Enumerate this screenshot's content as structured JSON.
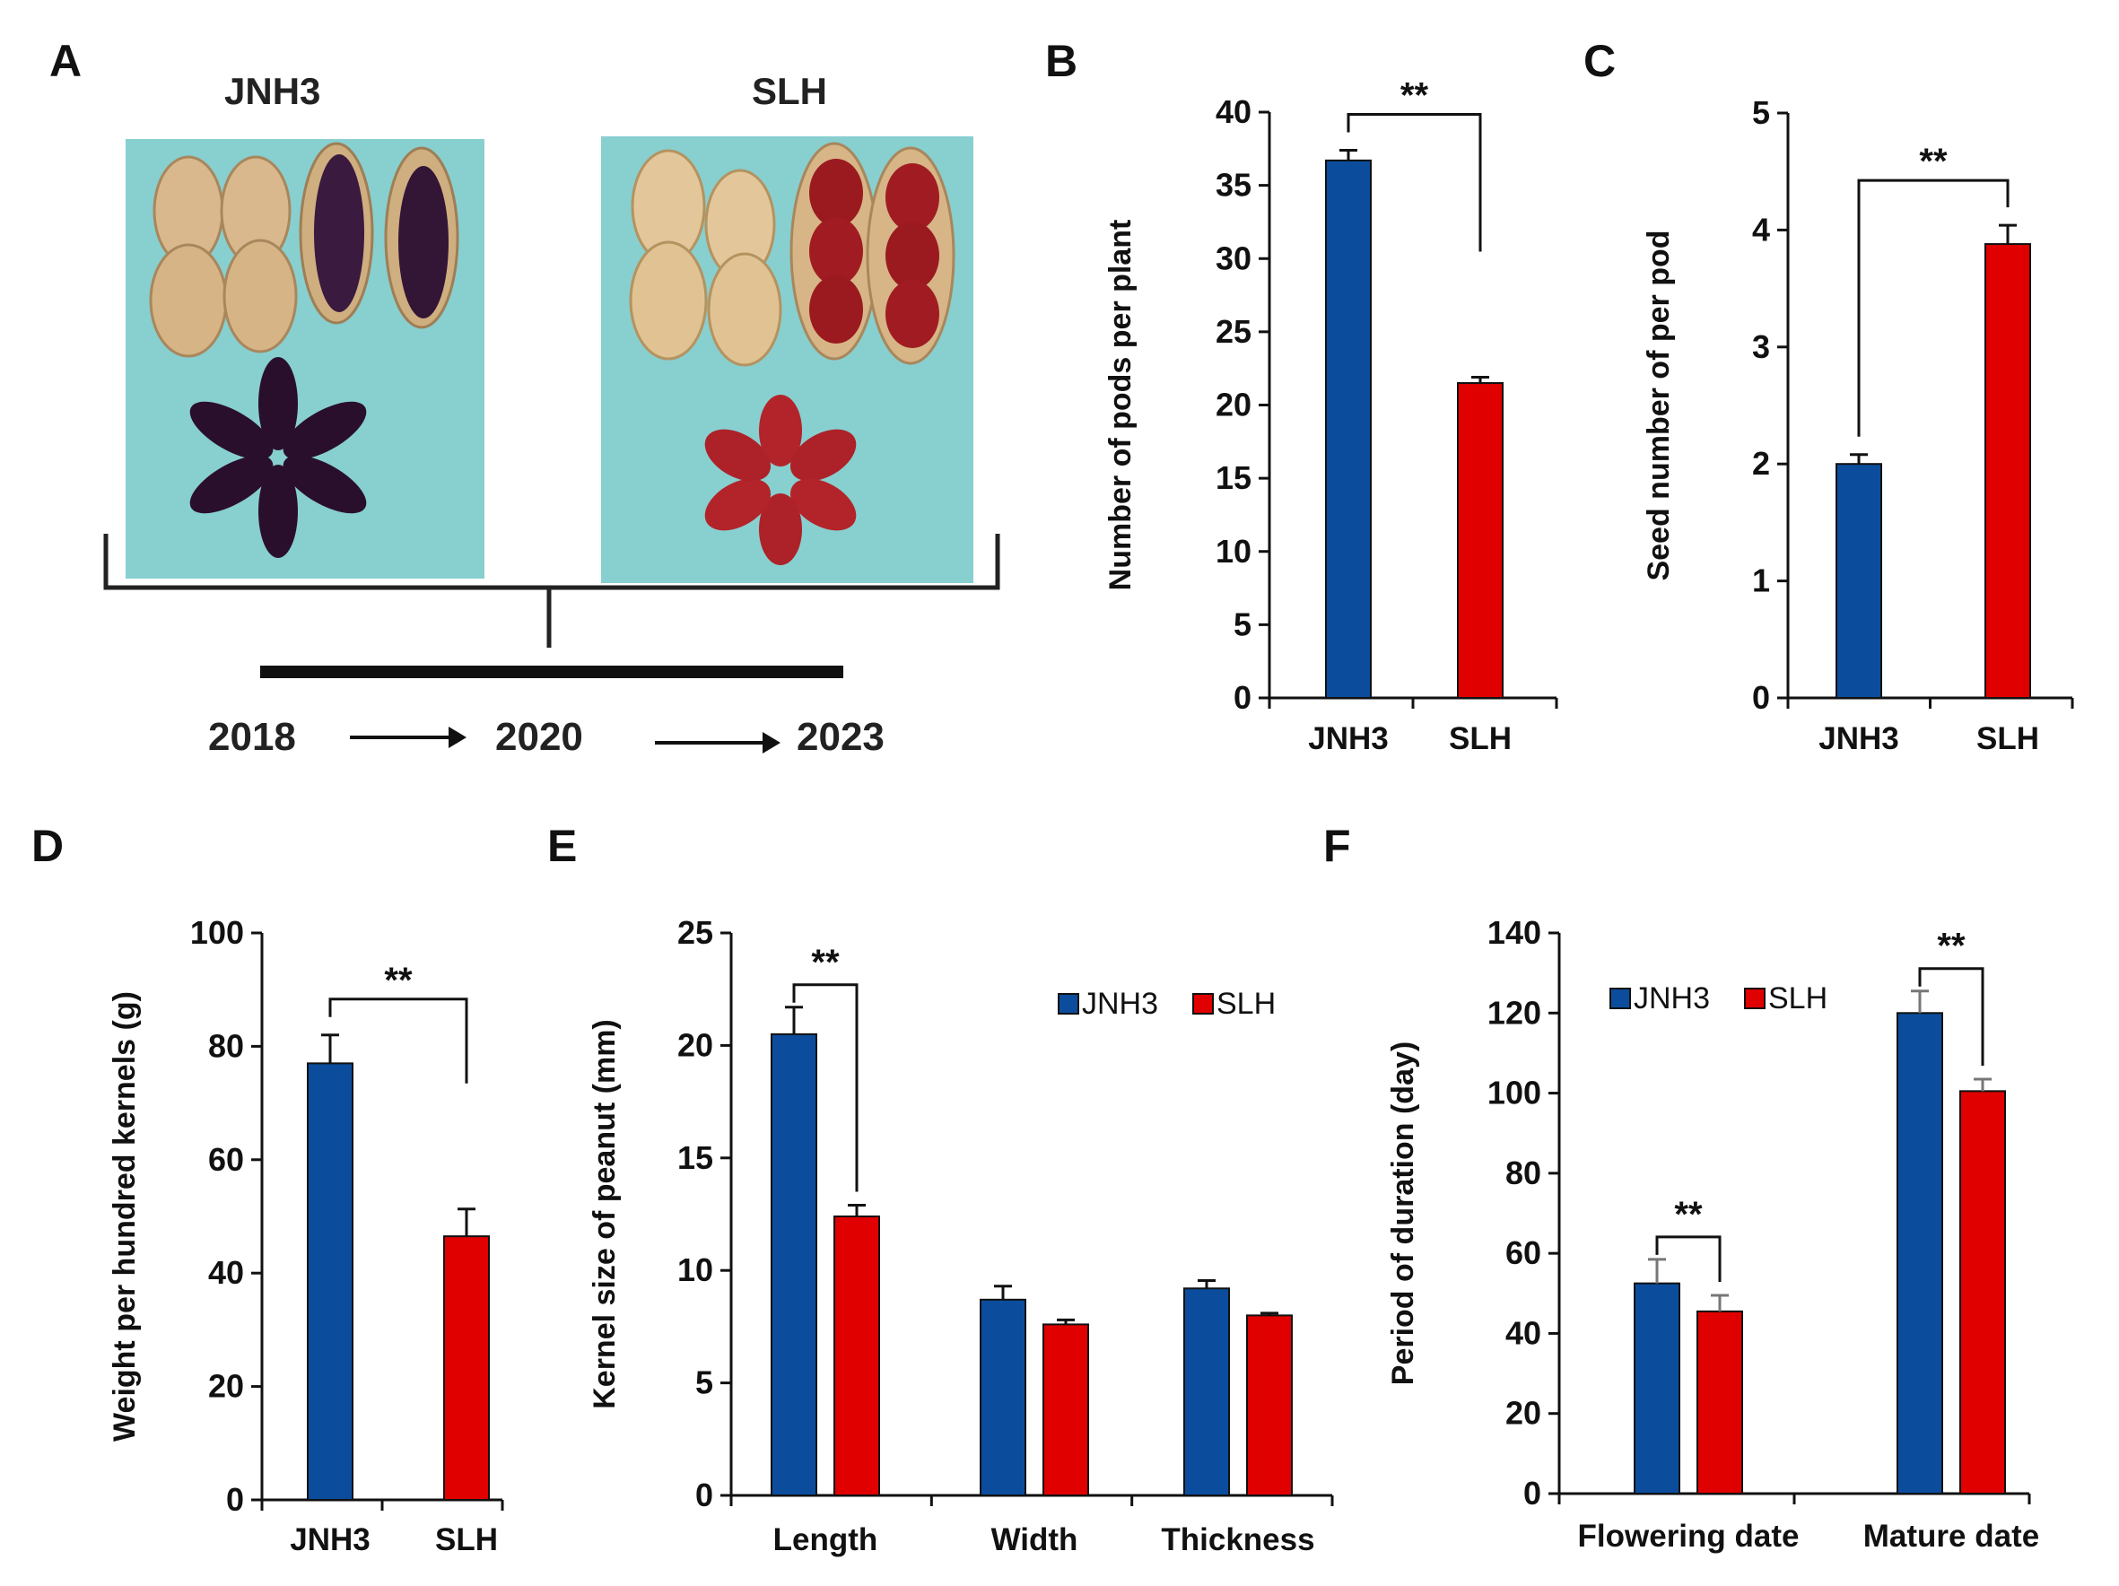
{
  "colors": {
    "jnh3": "#0b4d9c",
    "slh": "#e00000",
    "axis": "#111111",
    "photo_bg": "#86cfd0"
  },
  "panel_a": {
    "letter": "A",
    "left_label": "JNH3",
    "right_label": "SLH",
    "years": [
      "2018",
      "2020",
      "2023"
    ]
  },
  "chart_data": [
    {
      "panel": "B",
      "type": "bar",
      "categories": [
        "JNH3",
        "SLH"
      ],
      "values": [
        36.7,
        21.5
      ],
      "errors": [
        0.7,
        0.4
      ],
      "ylabel": "Number of pods per plant",
      "ylim": [
        0,
        40
      ],
      "yticks": [
        0,
        5,
        10,
        15,
        20,
        25,
        30,
        35,
        40
      ],
      "significance": [
        {
          "from": 0,
          "to": 1,
          "label": "**"
        }
      ]
    },
    {
      "panel": "C",
      "type": "bar",
      "categories": [
        "JNH3",
        "SLH"
      ],
      "values": [
        2.0,
        3.88
      ],
      "errors": [
        0.08,
        0.16
      ],
      "ylabel": "Seed number of per pod",
      "ylim": [
        0,
        5
      ],
      "yticks": [
        0,
        1,
        2,
        3,
        4,
        5
      ],
      "significance": [
        {
          "from": 0,
          "to": 1,
          "label": "**"
        }
      ]
    },
    {
      "panel": "D",
      "type": "bar",
      "categories": [
        "JNH3",
        "SLH"
      ],
      "values": [
        77,
        46.5
      ],
      "errors": [
        5,
        4.8
      ],
      "ylabel": "Weight per hundred kernels (g)",
      "ylim": [
        0,
        100
      ],
      "yticks": [
        0,
        20,
        40,
        60,
        80,
        100
      ],
      "significance": [
        {
          "from": 0,
          "to": 1,
          "label": "**"
        }
      ]
    },
    {
      "panel": "E",
      "type": "bar",
      "categories": [
        "Length",
        "Width",
        "Thickness"
      ],
      "series": [
        {
          "name": "JNH3",
          "values": [
            20.5,
            8.7,
            9.2
          ],
          "errors": [
            1.2,
            0.6,
            0.35
          ]
        },
        {
          "name": "SLH",
          "values": [
            12.4,
            7.6,
            8.0
          ],
          "errors": [
            0.5,
            0.2,
            0.1
          ]
        }
      ],
      "ylabel": "Kernel size of peanut (mm)",
      "ylim": [
        0,
        25
      ],
      "yticks": [
        0,
        5,
        10,
        15,
        20,
        25
      ],
      "legend": "top-right",
      "significance": [
        {
          "category": 0,
          "label": "**"
        }
      ]
    },
    {
      "panel": "F",
      "type": "bar",
      "categories": [
        "Flowering date",
        "Mature date"
      ],
      "series": [
        {
          "name": "JNH3",
          "values": [
            52.5,
            120
          ],
          "errors": [
            6,
            5.5
          ]
        },
        {
          "name": "SLH",
          "values": [
            45.5,
            100.5
          ],
          "errors": [
            4,
            3
          ]
        }
      ],
      "ylabel": "Period of duration (day)",
      "ylim": [
        0,
        140
      ],
      "yticks": [
        0,
        20,
        40,
        60,
        80,
        100,
        120,
        140
      ],
      "legend": "top-left",
      "significance": [
        {
          "category": 0,
          "label": "**"
        },
        {
          "category": 1,
          "label": "**"
        }
      ]
    }
  ]
}
